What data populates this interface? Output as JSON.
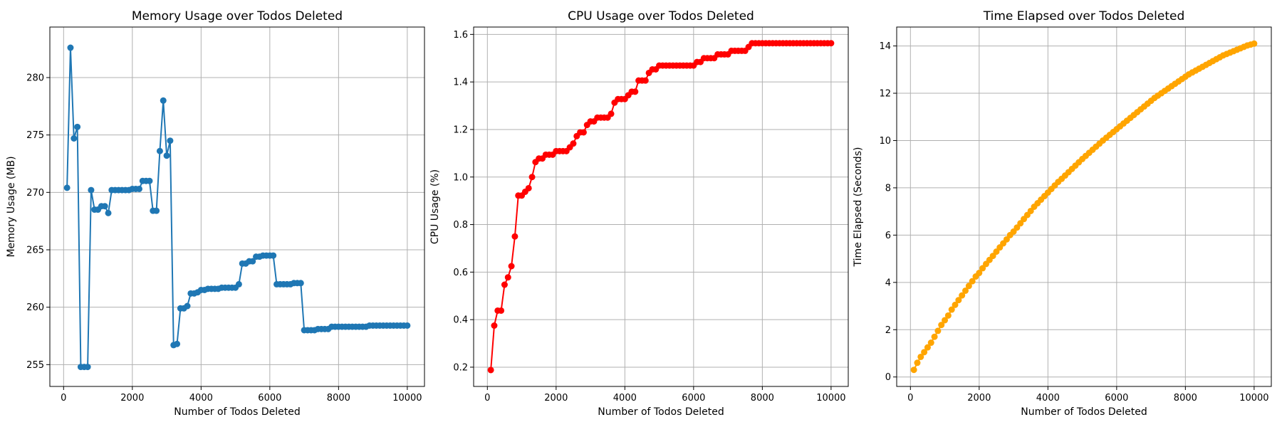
{
  "chart_data": [
    {
      "type": "line",
      "title": "Memory Usage over Todos Deleted",
      "xlabel": "Number of Todos Deleted",
      "ylabel": "Memory Usage (MB)",
      "xlim": [
        -400,
        10500
      ],
      "ylim": [
        253.1,
        284.4
      ],
      "xticks": [
        0,
        2000,
        4000,
        6000,
        8000,
        10000
      ],
      "yticks": [
        255,
        260,
        265,
        270,
        275,
        280
      ],
      "grid": true,
      "color": "#1f77b4",
      "x": [
        100,
        200,
        300,
        400,
        500,
        600,
        700,
        800,
        900,
        1000,
        1100,
        1200,
        1300,
        1400,
        1500,
        1600,
        1700,
        1800,
        1900,
        2000,
        2100,
        2200,
        2300,
        2400,
        2500,
        2600,
        2700,
        2800,
        2900,
        3000,
        3100,
        3200,
        3300,
        3400,
        3500,
        3600,
        3700,
        3800,
        3900,
        4000,
        4100,
        4200,
        4300,
        4400,
        4500,
        4600,
        4700,
        4800,
        4900,
        5000,
        5100,
        5200,
        5300,
        5400,
        5500,
        5600,
        5700,
        5800,
        5900,
        6000,
        6100,
        6200,
        6300,
        6400,
        6500,
        6600,
        6700,
        6800,
        6900,
        7000,
        7100,
        7200,
        7300,
        7400,
        7500,
        7600,
        7700,
        7800,
        7900,
        8000,
        8100,
        8200,
        8300,
        8400,
        8500,
        8600,
        8700,
        8800,
        8900,
        9000,
        9100,
        9200,
        9300,
        9400,
        9500,
        9600,
        9700,
        9800,
        9900,
        10000
      ],
      "y": [
        270.4,
        282.6,
        274.7,
        275.7,
        254.8,
        254.8,
        254.8,
        270.2,
        268.5,
        268.5,
        268.8,
        268.8,
        268.2,
        270.2,
        270.2,
        270.2,
        270.2,
        270.2,
        270.2,
        270.3,
        270.3,
        270.3,
        271.0,
        271.0,
        271.0,
        268.4,
        268.4,
        273.6,
        278.0,
        273.2,
        274.5,
        256.7,
        256.8,
        259.9,
        259.9,
        260.1,
        261.2,
        261.2,
        261.3,
        261.5,
        261.5,
        261.6,
        261.6,
        261.6,
        261.6,
        261.7,
        261.7,
        261.7,
        261.7,
        261.7,
        262.0,
        263.8,
        263.8,
        264.0,
        264.0,
        264.4,
        264.4,
        264.5,
        264.5,
        264.5,
        264.5,
        262.0,
        262.0,
        262.0,
        262.0,
        262.0,
        262.1,
        262.1,
        262.1,
        258.0,
        258.0,
        258.0,
        258.0,
        258.1,
        258.1,
        258.1,
        258.1,
        258.3,
        258.3,
        258.3,
        258.3,
        258.3,
        258.3,
        258.3,
        258.3,
        258.3,
        258.3,
        258.3,
        258.4,
        258.4,
        258.4,
        258.4,
        258.4,
        258.4,
        258.4,
        258.4,
        258.4,
        258.4,
        258.4,
        258.4
      ]
    },
    {
      "type": "line",
      "title": "CPU Usage over Todos Deleted",
      "xlabel": "Number of Todos Deleted",
      "ylabel": "CPU Usage (%)",
      "xlim": [
        -400,
        10500
      ],
      "ylim": [
        0.119,
        1.631
      ],
      "xticks": [
        0,
        2000,
        4000,
        6000,
        8000,
        10000
      ],
      "yticks": [
        0.2,
        0.4,
        0.6,
        0.8,
        1.0,
        1.2,
        1.4,
        1.6
      ],
      "yformat": 1,
      "grid": true,
      "color": "#ff0000",
      "x": [
        100,
        200,
        300,
        400,
        500,
        600,
        700,
        800,
        900,
        1000,
        1100,
        1200,
        1300,
        1400,
        1500,
        1600,
        1700,
        1800,
        1900,
        2000,
        2100,
        2200,
        2300,
        2400,
        2500,
        2600,
        2700,
        2800,
        2900,
        3000,
        3100,
        3200,
        3300,
        3400,
        3500,
        3600,
        3700,
        3800,
        3900,
        4000,
        4100,
        4200,
        4300,
        4400,
        4500,
        4600,
        4700,
        4800,
        4900,
        5000,
        5100,
        5200,
        5300,
        5400,
        5500,
        5600,
        5700,
        5800,
        5900,
        6000,
        6100,
        6200,
        6300,
        6400,
        6500,
        6600,
        6700,
        6800,
        6900,
        7000,
        7100,
        7200,
        7300,
        7400,
        7500,
        7600,
        7700,
        7800,
        7900,
        8000,
        8100,
        8200,
        8300,
        8400,
        8500,
        8600,
        8700,
        8800,
        8900,
        9000,
        9100,
        9200,
        9300,
        9400,
        9500,
        9600,
        9700,
        9800,
        9900,
        10000
      ],
      "y": [
        0.188,
        0.375,
        0.438,
        0.438,
        0.547,
        0.578,
        0.625,
        0.75,
        0.922,
        0.922,
        0.938,
        0.953,
        1.0,
        1.063,
        1.078,
        1.078,
        1.094,
        1.094,
        1.094,
        1.109,
        1.109,
        1.109,
        1.109,
        1.125,
        1.141,
        1.172,
        1.188,
        1.188,
        1.219,
        1.234,
        1.234,
        1.25,
        1.25,
        1.25,
        1.25,
        1.266,
        1.313,
        1.328,
        1.328,
        1.328,
        1.344,
        1.359,
        1.359,
        1.406,
        1.406,
        1.406,
        1.438,
        1.453,
        1.453,
        1.469,
        1.469,
        1.469,
        1.469,
        1.469,
        1.469,
        1.469,
        1.469,
        1.469,
        1.469,
        1.469,
        1.484,
        1.484,
        1.5,
        1.5,
        1.5,
        1.5,
        1.516,
        1.516,
        1.516,
        1.516,
        1.531,
        1.531,
        1.531,
        1.531,
        1.531,
        1.547,
        1.563,
        1.563,
        1.563,
        1.563,
        1.563,
        1.563,
        1.563,
        1.563,
        1.563,
        1.563,
        1.563,
        1.563,
        1.563,
        1.563,
        1.563,
        1.563,
        1.563,
        1.563,
        1.563,
        1.563,
        1.563,
        1.563,
        1.563,
        1.563
      ]
    },
    {
      "type": "line",
      "title": "Time Elapsed over Todos Deleted",
      "xlabel": "Number of Todos Deleted",
      "ylabel": "Time Elapsed (Seconds)",
      "xlim": [
        -400,
        10500
      ],
      "ylim": [
        -0.4,
        14.8
      ],
      "xticks": [
        0,
        2000,
        4000,
        6000,
        8000,
        10000
      ],
      "yticks": [
        0,
        2,
        4,
        6,
        8,
        10,
        12,
        14
      ],
      "grid": true,
      "color": "#ffa500",
      "x": [
        100,
        200,
        300,
        400,
        500,
        600,
        700,
        800,
        900,
        1000,
        1100,
        1200,
        1300,
        1400,
        1500,
        1600,
        1700,
        1800,
        1900,
        2000,
        2100,
        2200,
        2300,
        2400,
        2500,
        2600,
        2700,
        2800,
        2900,
        3000,
        3100,
        3200,
        3300,
        3400,
        3500,
        3600,
        3700,
        3800,
        3900,
        4000,
        4100,
        4200,
        4300,
        4400,
        4500,
        4600,
        4700,
        4800,
        4900,
        5000,
        5100,
        5200,
        5300,
        5400,
        5500,
        5600,
        5700,
        5800,
        5900,
        6000,
        6100,
        6200,
        6300,
        6400,
        6500,
        6600,
        6700,
        6800,
        6900,
        7000,
        7100,
        7200,
        7300,
        7400,
        7500,
        7600,
        7700,
        7800,
        7900,
        8000,
        8100,
        8200,
        8300,
        8400,
        8500,
        8600,
        8700,
        8800,
        8900,
        9000,
        9100,
        9200,
        9300,
        9400,
        9500,
        9600,
        9700,
        9800,
        9900,
        10000
      ],
      "y": [
        0.3,
        0.6,
        0.85,
        1.05,
        1.25,
        1.45,
        1.7,
        1.95,
        2.2,
        2.4,
        2.6,
        2.85,
        3.05,
        3.25,
        3.45,
        3.65,
        3.85,
        4.05,
        4.25,
        4.4,
        4.6,
        4.78,
        4.95,
        5.12,
        5.3,
        5.48,
        5.65,
        5.82,
        6.0,
        6.15,
        6.32,
        6.5,
        6.68,
        6.85,
        7.02,
        7.2,
        7.35,
        7.5,
        7.65,
        7.8,
        7.95,
        8.1,
        8.25,
        8.38,
        8.52,
        8.66,
        8.8,
        8.94,
        9.08,
        9.22,
        9.35,
        9.48,
        9.61,
        9.74,
        9.87,
        10.0,
        10.12,
        10.24,
        10.36,
        10.48,
        10.6,
        10.72,
        10.84,
        10.96,
        11.08,
        11.2,
        11.32,
        11.44,
        11.56,
        11.68,
        11.8,
        11.9,
        12.0,
        12.1,
        12.2,
        12.3,
        12.4,
        12.5,
        12.6,
        12.7,
        12.8,
        12.88,
        12.96,
        13.04,
        13.12,
        13.2,
        13.28,
        13.36,
        13.44,
        13.52,
        13.6,
        13.66,
        13.72,
        13.78,
        13.84,
        13.9,
        13.96,
        14.02,
        14.06,
        14.1
      ]
    }
  ]
}
